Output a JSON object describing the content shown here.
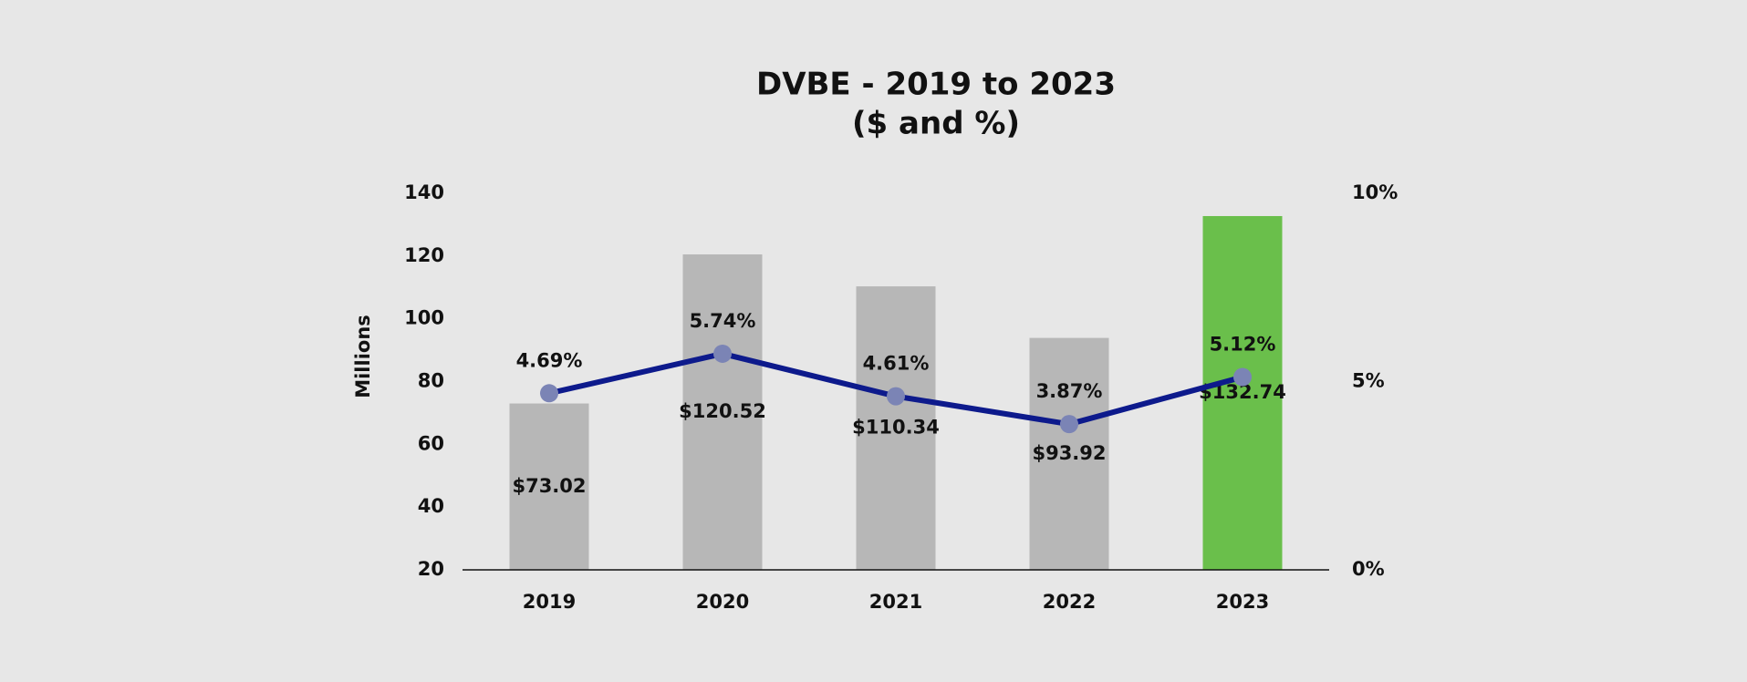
{
  "chart_data": {
    "type": "bar-line",
    "title": "DVBE - 2019 to 2023",
    "subtitle": "($ and %)",
    "y_label": "Millions",
    "categories": [
      "2019",
      "2020",
      "2021",
      "2022",
      "2023"
    ],
    "series": [
      {
        "type": "bar",
        "colors": [
          "#b7b7b7",
          "#b7b7b7",
          "#b7b7b7",
          "#b7b7b7",
          "#6abf4b"
        ],
        "values": [
          73.02,
          120.52,
          110.34,
          93.92,
          132.74
        ],
        "value_labels": [
          "$73.02",
          "$120.52",
          "$110.34",
          "$93.92",
          "$132.74"
        ]
      },
      {
        "type": "line",
        "axis": "y2",
        "color": "#0d1a8c",
        "marker_color": "#7b84b5",
        "values": [
          4.69,
          5.74,
          4.61,
          3.87,
          5.12
        ],
        "value_labels": [
          "4.69%",
          "5.74%",
          "4.61%",
          "3.87%",
          "5.12%"
        ]
      }
    ],
    "ylim": [
      20,
      140
    ],
    "yticks": [
      20,
      40,
      60,
      80,
      100,
      120,
      140
    ],
    "y2lim": [
      0,
      10
    ],
    "y2ticks": [
      {
        "value": 0,
        "label": "0%"
      },
      {
        "value": 5,
        "label": "5%"
      },
      {
        "value": 10,
        "label": "10%"
      }
    ],
    "grid": false
  }
}
